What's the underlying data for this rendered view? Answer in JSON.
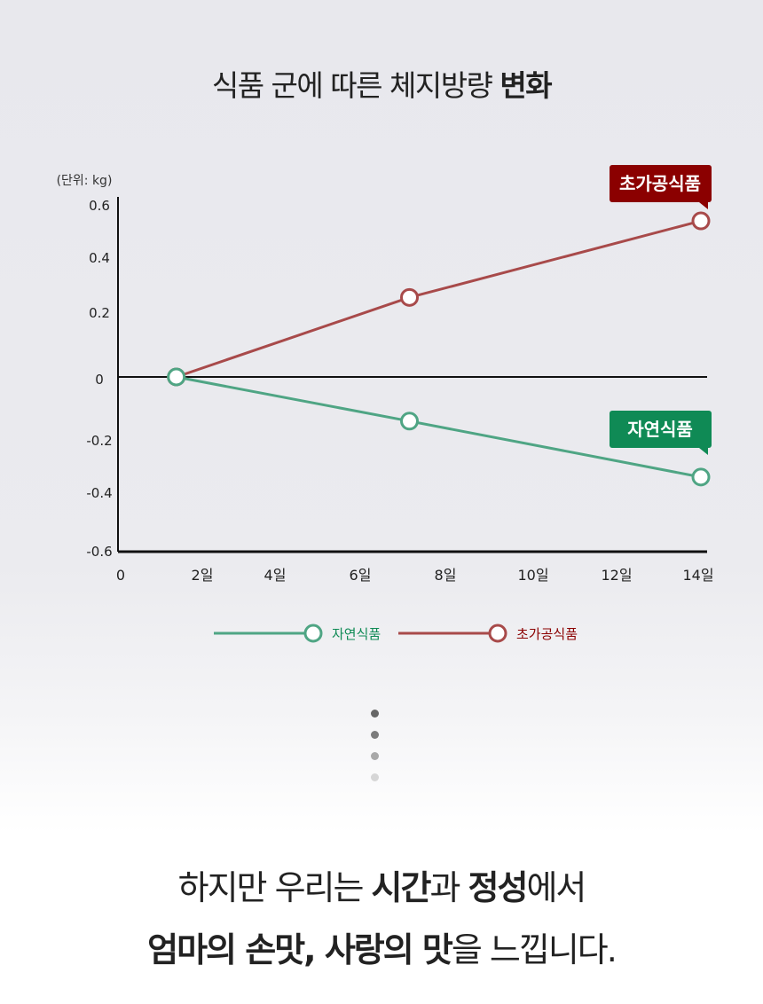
{
  "title": {
    "normal": "식품 군에 따른 체지방량 ",
    "bold": "변화"
  },
  "chart_data": {
    "type": "line",
    "unit_label": "(단위: kg)",
    "y_ticks": [
      "0.6",
      "0.4",
      "0.2",
      "0",
      "-0.2",
      "-0.4",
      "-0.6"
    ],
    "x_ticks": [
      "0",
      "2일",
      "4일",
      "6일",
      "8일",
      "10일",
      "12일",
      "14일"
    ],
    "ylim": [
      -0.6,
      0.6
    ],
    "xlim": [
      0,
      14
    ],
    "series": [
      {
        "name": "초가공식품",
        "color": "#a84a4a",
        "x": [
          1.4,
          7,
          14
        ],
        "y": [
          0,
          0.27,
          0.53
        ]
      },
      {
        "name": "자연식품",
        "color": "#4fa584",
        "x": [
          1.4,
          7,
          14
        ],
        "y": [
          0,
          -0.15,
          -0.34
        ]
      }
    ],
    "callouts": [
      {
        "text": "초가공식품",
        "color": "#8b0000"
      },
      {
        "text": "자연식품",
        "color": "#0f8a55"
      }
    ],
    "legend": [
      {
        "label": "자연식품",
        "color": "#4fa584",
        "text_color": "#0f8a55"
      },
      {
        "label": "초가공식품",
        "color": "#a84a4a",
        "text_color": "#8b0000"
      }
    ]
  },
  "pagination_dots": [
    "#666666",
    "#7c7c7c",
    "#a8a8a8",
    "#d6d6d6"
  ],
  "bottom": {
    "line1": [
      {
        "text": "하지만 우리는 ",
        "bold": false
      },
      {
        "text": "시간",
        "bold": true
      },
      {
        "text": "과 ",
        "bold": false
      },
      {
        "text": "정성",
        "bold": true
      },
      {
        "text": "에서",
        "bold": false
      }
    ],
    "line2": [
      {
        "text": "엄마의 손맛, 사랑의 맛",
        "bold": true
      },
      {
        "text": "을 느낍니다.",
        "bold": false
      }
    ]
  }
}
